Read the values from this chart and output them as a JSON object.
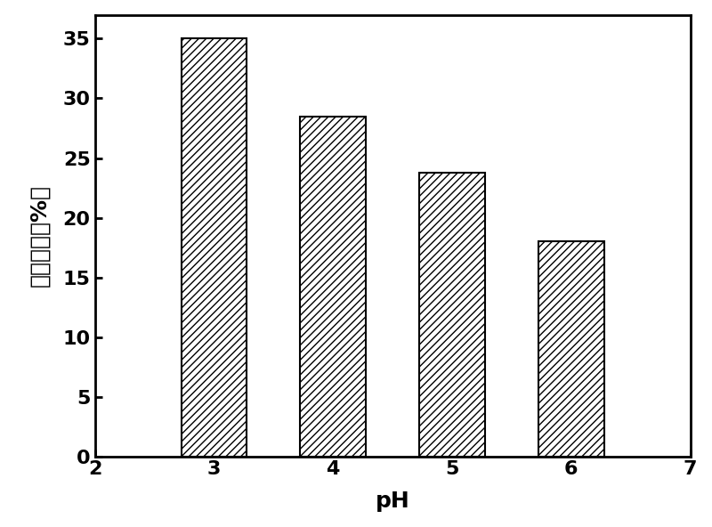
{
  "ph_values": [
    3,
    4,
    5,
    6
  ],
  "removal_rates": [
    35.0,
    28.5,
    23.8,
    18.0
  ],
  "xlabel": "pH",
  "ylabel": "脱除效率（%）",
  "xlim": [
    2,
    7
  ],
  "ylim": [
    0,
    37
  ],
  "yticks": [
    0,
    5,
    10,
    15,
    20,
    25,
    30,
    35
  ],
  "xticks": [
    2,
    3,
    4,
    5,
    6,
    7
  ],
  "bar_width": 0.55,
  "bar_color": "white",
  "bar_edgecolor": "black",
  "hatch": "////",
  "background_color": "white",
  "tick_fontsize": 16,
  "label_fontsize": 18,
  "spine_linewidth": 2.0,
  "tick_linewidth": 2.0,
  "bar_linewidth": 1.5
}
